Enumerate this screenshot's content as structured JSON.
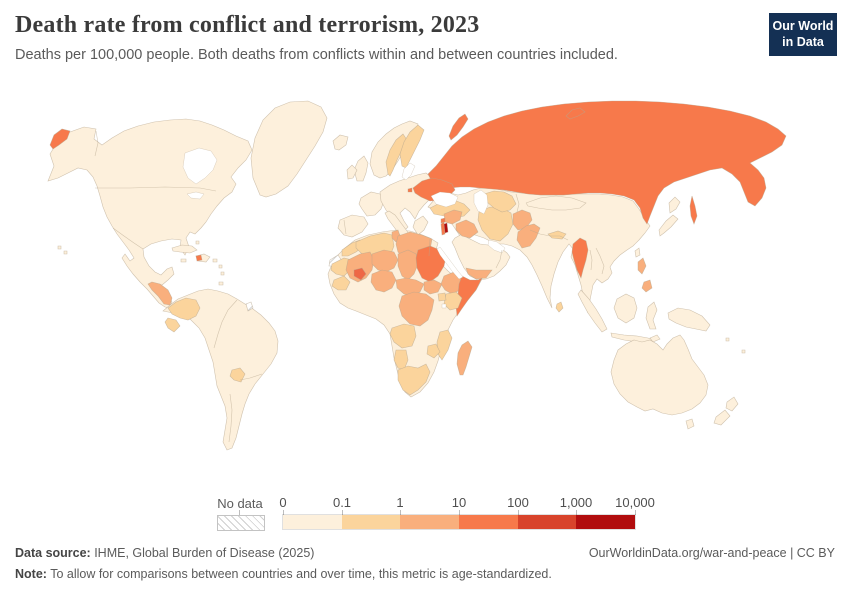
{
  "header": {
    "title": "Death rate from conflict and terrorism, 2023",
    "subtitle": "Deaths per 100,000 people. Both deaths from conflicts within and between countries included.",
    "logo_line1": "Our World",
    "logo_line2": "in Data",
    "logo_bg": "#143054",
    "logo_accent": "#c8322d"
  },
  "chart_data": {
    "type": "choropleth_map",
    "title": "Death rate from conflict and terrorism, 2023",
    "unit": "Deaths per 100,000 people",
    "projection": "world",
    "legend": {
      "no_data_label": "No data",
      "tick_labels": [
        "0",
        "0.1",
        "1",
        "10",
        "100",
        "1,000",
        "10,000"
      ],
      "bin_labels": [
        "0-0.1",
        "0.1-1",
        "1-10",
        "10-100",
        "100-1,000",
        "1,000-10,000"
      ],
      "bin_colors": [
        "#FDF0DC",
        "#FBD49C",
        "#F9AF7D",
        "#F7794B",
        "#D8432B",
        "#B10D0E"
      ],
      "position": "bottom"
    },
    "default_bin": 0,
    "regions": [
      {
        "id": "russia",
        "name": "Russia",
        "bin": 3
      },
      {
        "id": "ukraine",
        "name": "Ukraine",
        "bin": 3
      },
      {
        "id": "sweden",
        "name": "Sweden",
        "bin": 1
      },
      {
        "id": "finland",
        "name": "Finland",
        "bin": 1
      },
      {
        "id": "turkey",
        "name": "Turkey",
        "bin": 1
      },
      {
        "id": "syria",
        "name": "Syria",
        "bin": 2
      },
      {
        "id": "lebanon",
        "name": "Lebanon",
        "bin": 3
      },
      {
        "id": "israel",
        "name": "Israel",
        "bin": 3
      },
      {
        "id": "palestine",
        "name": "Palestine",
        "bin": 5
      },
      {
        "id": "iraq",
        "name": "Iraq",
        "bin": 2
      },
      {
        "id": "iran",
        "name": "Iran",
        "bin": 1
      },
      {
        "id": "central-asia",
        "name": "Central Asia",
        "bin": 1
      },
      {
        "id": "afghanistan",
        "name": "Afghanistan",
        "bin": 2
      },
      {
        "id": "pakistan",
        "name": "Pakistan",
        "bin": 2
      },
      {
        "id": "yemen",
        "name": "Yemen",
        "bin": 2
      },
      {
        "id": "nepal",
        "name": "Nepal",
        "bin": 1
      },
      {
        "id": "sri-lanka",
        "name": "Sri Lanka",
        "bin": 1
      },
      {
        "id": "myanmar",
        "name": "Myanmar",
        "bin": 3
      },
      {
        "id": "philippines",
        "name": "Philippines",
        "bin": 2
      },
      {
        "id": "haiti",
        "name": "Haiti",
        "bin": 3
      },
      {
        "id": "central-america",
        "name": "Guatemala, Honduras & Nicaragua",
        "bin": 2
      },
      {
        "id": "colombia",
        "name": "Colombia",
        "bin": 1
      },
      {
        "id": "ecuador",
        "name": "Ecuador",
        "bin": 1
      },
      {
        "id": "paraguay",
        "name": "Paraguay",
        "bin": 1
      },
      {
        "id": "morocco",
        "name": "Morocco",
        "bin": 1
      },
      {
        "id": "algeria",
        "name": "Algeria",
        "bin": 1
      },
      {
        "id": "tunisia",
        "name": "Tunisia",
        "bin": 2
      },
      {
        "id": "libya",
        "name": "Libya",
        "bin": 2
      },
      {
        "id": "mauritania",
        "name": "Mauritania",
        "bin": 1
      },
      {
        "id": "mali",
        "name": "Mali",
        "bin": 2
      },
      {
        "id": "niger",
        "name": "Niger",
        "bin": 2
      },
      {
        "id": "chad",
        "name": "Chad",
        "bin": 2
      },
      {
        "id": "sudan",
        "name": "Sudan",
        "bin": 3
      },
      {
        "id": "south-sudan",
        "name": "South Sudan",
        "bin": 2
      },
      {
        "id": "burkina-faso",
        "name": "Burkina Faso",
        "bin": 3,
        "color": "#EE6746"
      },
      {
        "id": "nigeria",
        "name": "Nigeria",
        "bin": 2
      },
      {
        "id": "cameroon-car",
        "name": "Cameroon & Central African Republic",
        "bin": 2
      },
      {
        "id": "ethiopia",
        "name": "Ethiopia",
        "bin": 2
      },
      {
        "id": "somalia",
        "name": "Somalia",
        "bin": 3
      },
      {
        "id": "kenya",
        "name": "Kenya",
        "bin": 1
      },
      {
        "id": "uganda",
        "name": "Uganda",
        "bin": 1
      },
      {
        "id": "drc",
        "name": "Democratic Republic of Congo",
        "bin": 2
      },
      {
        "id": "angola",
        "name": "Angola",
        "bin": 1
      },
      {
        "id": "mozambique",
        "name": "Mozambique",
        "bin": 1
      },
      {
        "id": "zimbabwe",
        "name": "Zimbabwe",
        "bin": 1
      },
      {
        "id": "namibia",
        "name": "Namibia",
        "bin": 1
      },
      {
        "id": "south-africa",
        "name": "South Africa",
        "bin": 1
      },
      {
        "id": "guinea",
        "name": "Guinea",
        "bin": 1
      },
      {
        "id": "madagascar",
        "name": "Madagascar",
        "bin": 2
      },
      {
        "id": "western-sahara",
        "name": "Western Sahara",
        "bin": null
      },
      {
        "id": "french-guiana",
        "name": "French Guiana",
        "bin": null
      }
    ]
  },
  "footer": {
    "datasource_label": "Data source:",
    "datasource": " IHME, Global Burden of Disease (2025)",
    "rights": "OurWorldinData.org/war-and-peace | CC BY",
    "note_label": "Note:",
    "note": " To allow for comparisons between countries and over time, this metric is age-standardized."
  }
}
